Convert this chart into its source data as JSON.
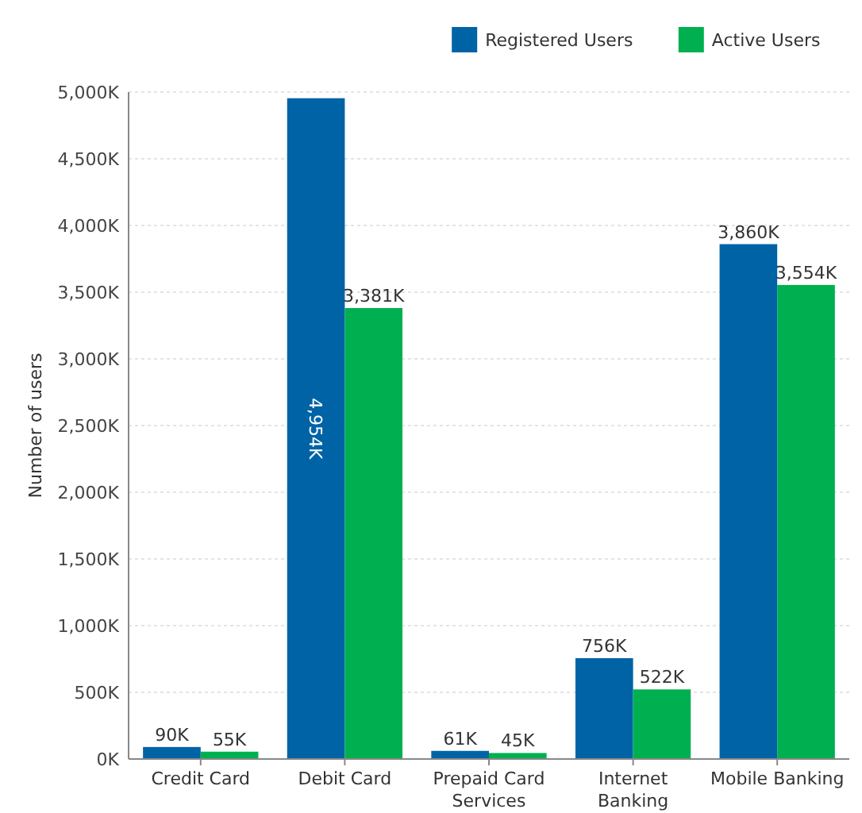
{
  "chart_data": {
    "type": "bar",
    "ylabel": "Number of users",
    "categories": [
      "Credit Card",
      "Debit Card",
      "Prepaid Card Services",
      "Internet Banking",
      "Mobile Banking"
    ],
    "series": [
      {
        "name": "Registered Users",
        "color": "#0063a6",
        "values": [
          90,
          4954,
          61,
          756,
          3860
        ],
        "value_labels": [
          "90K",
          "4,954K",
          "61K",
          "756K",
          "3,860K"
        ]
      },
      {
        "name": "Active Users",
        "color": "#00b050",
        "values": [
          55,
          3381,
          45,
          522,
          3554
        ],
        "value_labels": [
          "55K",
          "3,381K",
          "45K",
          "522K",
          "3,554K"
        ]
      }
    ],
    "ylim": [
      0,
      5000
    ],
    "yticks": [
      {
        "value": 0,
        "label": "0K"
      },
      {
        "value": 500,
        "label": "500K"
      },
      {
        "value": 1000,
        "label": "1,000K"
      },
      {
        "value": 1500,
        "label": "1,500K"
      },
      {
        "value": 2000,
        "label": "2,000K"
      },
      {
        "value": 2500,
        "label": "2,500K"
      },
      {
        "value": 3000,
        "label": "3,000K"
      },
      {
        "value": 3500,
        "label": "3,500K"
      },
      {
        "value": 4000,
        "label": "4,000K"
      },
      {
        "value": 4500,
        "label": "4,500K"
      },
      {
        "value": 5000,
        "label": "5,000K"
      }
    ],
    "grid": "y",
    "legend": "top right"
  }
}
